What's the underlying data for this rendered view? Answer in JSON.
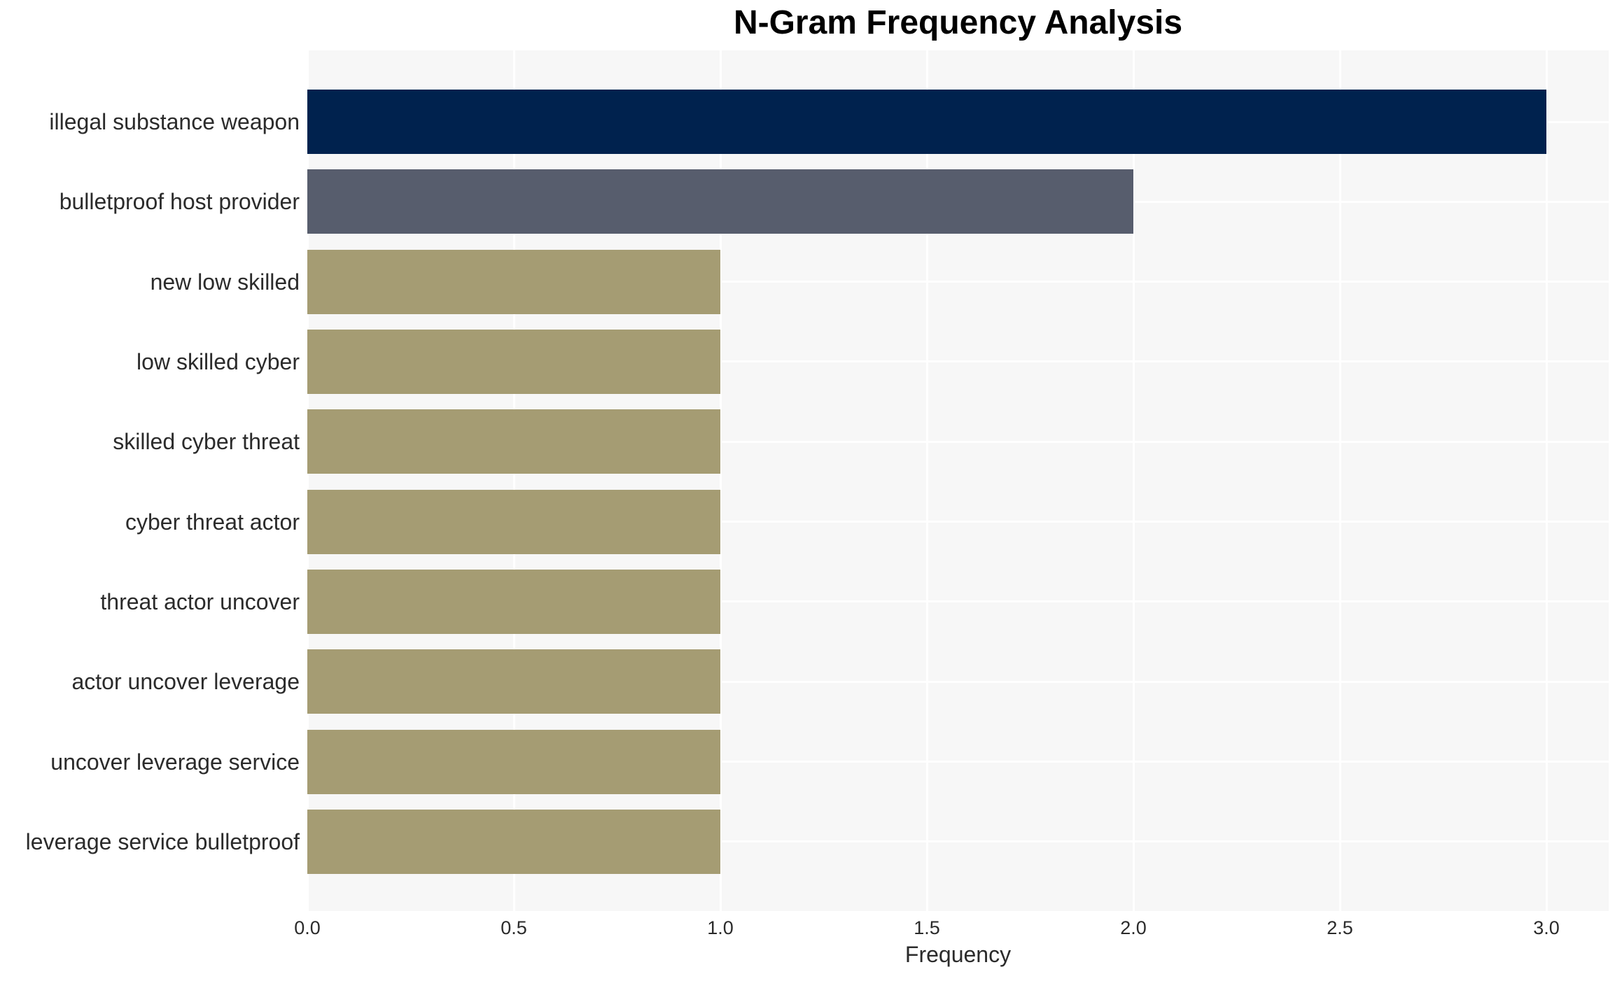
{
  "figure": {
    "title": "N-Gram Frequency Analysis",
    "xlabel": "Frequency"
  },
  "chart_data": {
    "type": "bar",
    "orientation": "horizontal",
    "title": "N-Gram Frequency Analysis",
    "xlabel": "Frequency",
    "ylabel": "",
    "categories": [
      "illegal substance weapon",
      "bulletproof host provider",
      "new low skilled",
      "low skilled cyber",
      "skilled cyber threat",
      "cyber threat actor",
      "threat actor uncover",
      "actor uncover leverage",
      "uncover leverage service",
      "leverage service bulletproof"
    ],
    "values": [
      3,
      2,
      1,
      1,
      1,
      1,
      1,
      1,
      1,
      1
    ],
    "bar_colors": [
      "#00224e",
      "#575d6d",
      "#a59c73",
      "#a59c73",
      "#a59c73",
      "#a59c73",
      "#a59c73",
      "#a59c73",
      "#a59c73",
      "#a59c73"
    ],
    "xlim": [
      0,
      3.15
    ],
    "xticks": [
      0,
      0.5,
      1,
      1.5,
      2,
      2.5,
      3
    ],
    "xtick_labels": [
      "0.0",
      "0.5",
      "1.0",
      "1.5",
      "2.0",
      "2.5",
      "3.0"
    ],
    "grid": {
      "axis": "both",
      "color": "#ffffff",
      "style": "solid"
    },
    "legend": "none",
    "colors": {
      "panel_bg": "#f7f7f7",
      "page_bg": "#ffffff",
      "title_text": "#000000",
      "label_text": "#2b2b2b"
    }
  }
}
